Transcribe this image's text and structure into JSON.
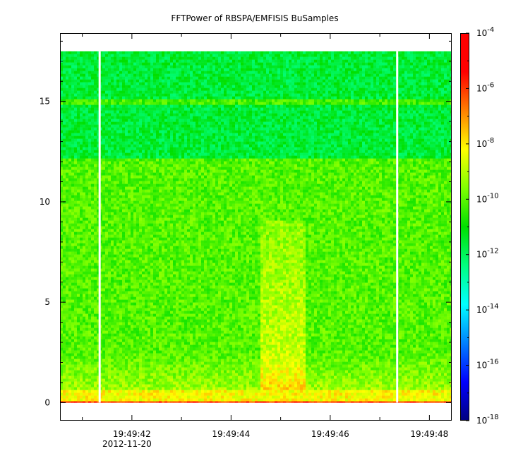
{
  "chart_data": {
    "type": "heatmap",
    "title": "FFTPower of RBSPA/EMFISIS  BuSamples",
    "xlabel": "",
    "ylabel": "",
    "x_range_seconds": [
      40.55,
      48.45
    ],
    "x_ticks": [
      {
        "t": 41,
        "label": ""
      },
      {
        "t": 42,
        "label": "19:49:42",
        "sublabel": "2012-11-20"
      },
      {
        "t": 43,
        "label": ""
      },
      {
        "t": 44,
        "label": "19:49:44"
      },
      {
        "t": 45,
        "label": ""
      },
      {
        "t": 46,
        "label": "19:49:46"
      },
      {
        "t": 47,
        "label": ""
      },
      {
        "t": 48,
        "label": "19:49:48"
      }
    ],
    "ylim": [
      -0.9,
      18.4
    ],
    "y_ticks": [
      0,
      5,
      10,
      15
    ],
    "data_ylim": [
      0,
      17.5
    ],
    "gaps_seconds": [
      41.35,
      47.35
    ],
    "colorbar": {
      "scale": "log",
      "range_exponent": [
        -18,
        -4
      ],
      "ticks": [
        {
          "exp": -4,
          "label": "10",
          "sup": "-4"
        },
        {
          "exp": -6,
          "label": "10",
          "sup": "-6"
        },
        {
          "exp": -8,
          "label": "10",
          "sup": "-8"
        },
        {
          "exp": -10,
          "label": "10",
          "sup": "-10"
        },
        {
          "exp": -12,
          "label": "10",
          "sup": "-12"
        },
        {
          "exp": -14,
          "label": "10",
          "sup": "-14"
        },
        {
          "exp": -16,
          "label": "10",
          "sup": "-16"
        },
        {
          "exp": -18,
          "label": "10",
          "sup": "-18"
        }
      ],
      "colors": [
        "#00007f",
        "#0000ff",
        "#0080ff",
        "#00ffff",
        "#00ff80",
        "#00e000",
        "#80ff00",
        "#ffff00",
        "#ff8000",
        "#ff0000",
        "#ff0000"
      ]
    },
    "bands": [
      {
        "f_from": 12.2,
        "f_to": 17.5,
        "log_power": -11.6
      },
      {
        "f_from": 15.0,
        "f_to": 15.0,
        "log_power": -10.3
      },
      {
        "f_from": 0.6,
        "f_to": 12.2,
        "log_power": -10.1
      },
      {
        "f_from": 0.1,
        "f_to": 0.6,
        "log_power": -8.2
      },
      {
        "f_from": 0.0,
        "f_to": 0.1,
        "log_power": -6.0
      }
    ],
    "enhancement": {
      "t_from": 44.6,
      "t_to": 45.5,
      "f_from": 0,
      "f_to": 9,
      "log_power": -8.6
    }
  }
}
